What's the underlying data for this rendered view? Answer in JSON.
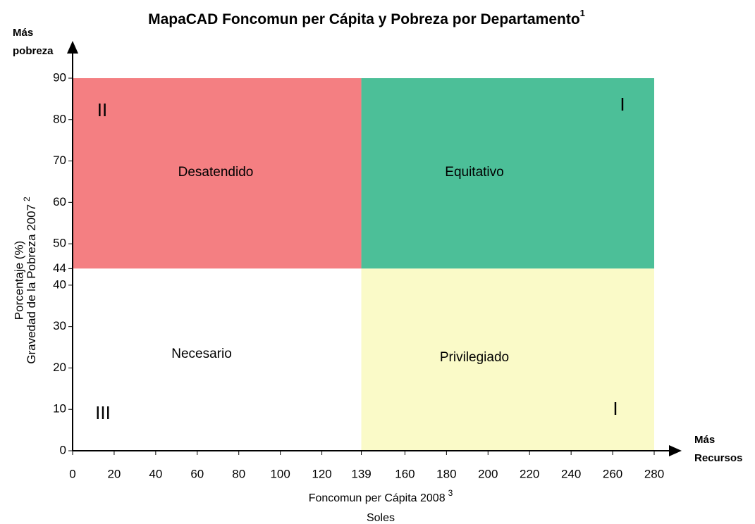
{
  "chart_data": {
    "type": "quadrant",
    "title": "MapaCAD Foncomun per Cápita y Pobreza por Departamento",
    "title_note": "1",
    "y_label": [
      "Porcentaje (%)",
      "Gravedad de la Pobreza 2007"
    ],
    "y_label_note": "2",
    "x_label": [
      "Foncomun per Cápita 2008",
      "Soles"
    ],
    "x_label_note": "3",
    "y_arrow_label": [
      "Más",
      "pobreza"
    ],
    "x_arrow_label": [
      "Más",
      "Recursos"
    ],
    "xlim": [
      0,
      280
    ],
    "ylim": [
      0,
      90
    ],
    "xticks": [
      0,
      20,
      40,
      60,
      80,
      100,
      120,
      139,
      160,
      180,
      200,
      220,
      240,
      260,
      280
    ],
    "yticks": [
      0,
      10,
      20,
      30,
      40,
      44,
      50,
      60,
      70,
      80,
      90
    ],
    "regions": [
      {
        "name": "Desatendido",
        "numeral": "II",
        "x": [
          0,
          139
        ],
        "y": [
          44,
          90
        ],
        "color": "#f47f82"
      },
      {
        "name": "Equitativo",
        "numeral": "I",
        "x": [
          139,
          280
        ],
        "y": [
          44,
          90
        ],
        "color": "#4cbf98"
      },
      {
        "name": "Necesario",
        "numeral": "III",
        "x": [
          0,
          139
        ],
        "y": [
          0,
          44
        ],
        "color": "#ffffff"
      },
      {
        "name": "Privilegiado",
        "numeral": "I",
        "x": [
          139,
          280
        ],
        "y": [
          0,
          44
        ],
        "color": "#fafac8"
      }
    ]
  }
}
